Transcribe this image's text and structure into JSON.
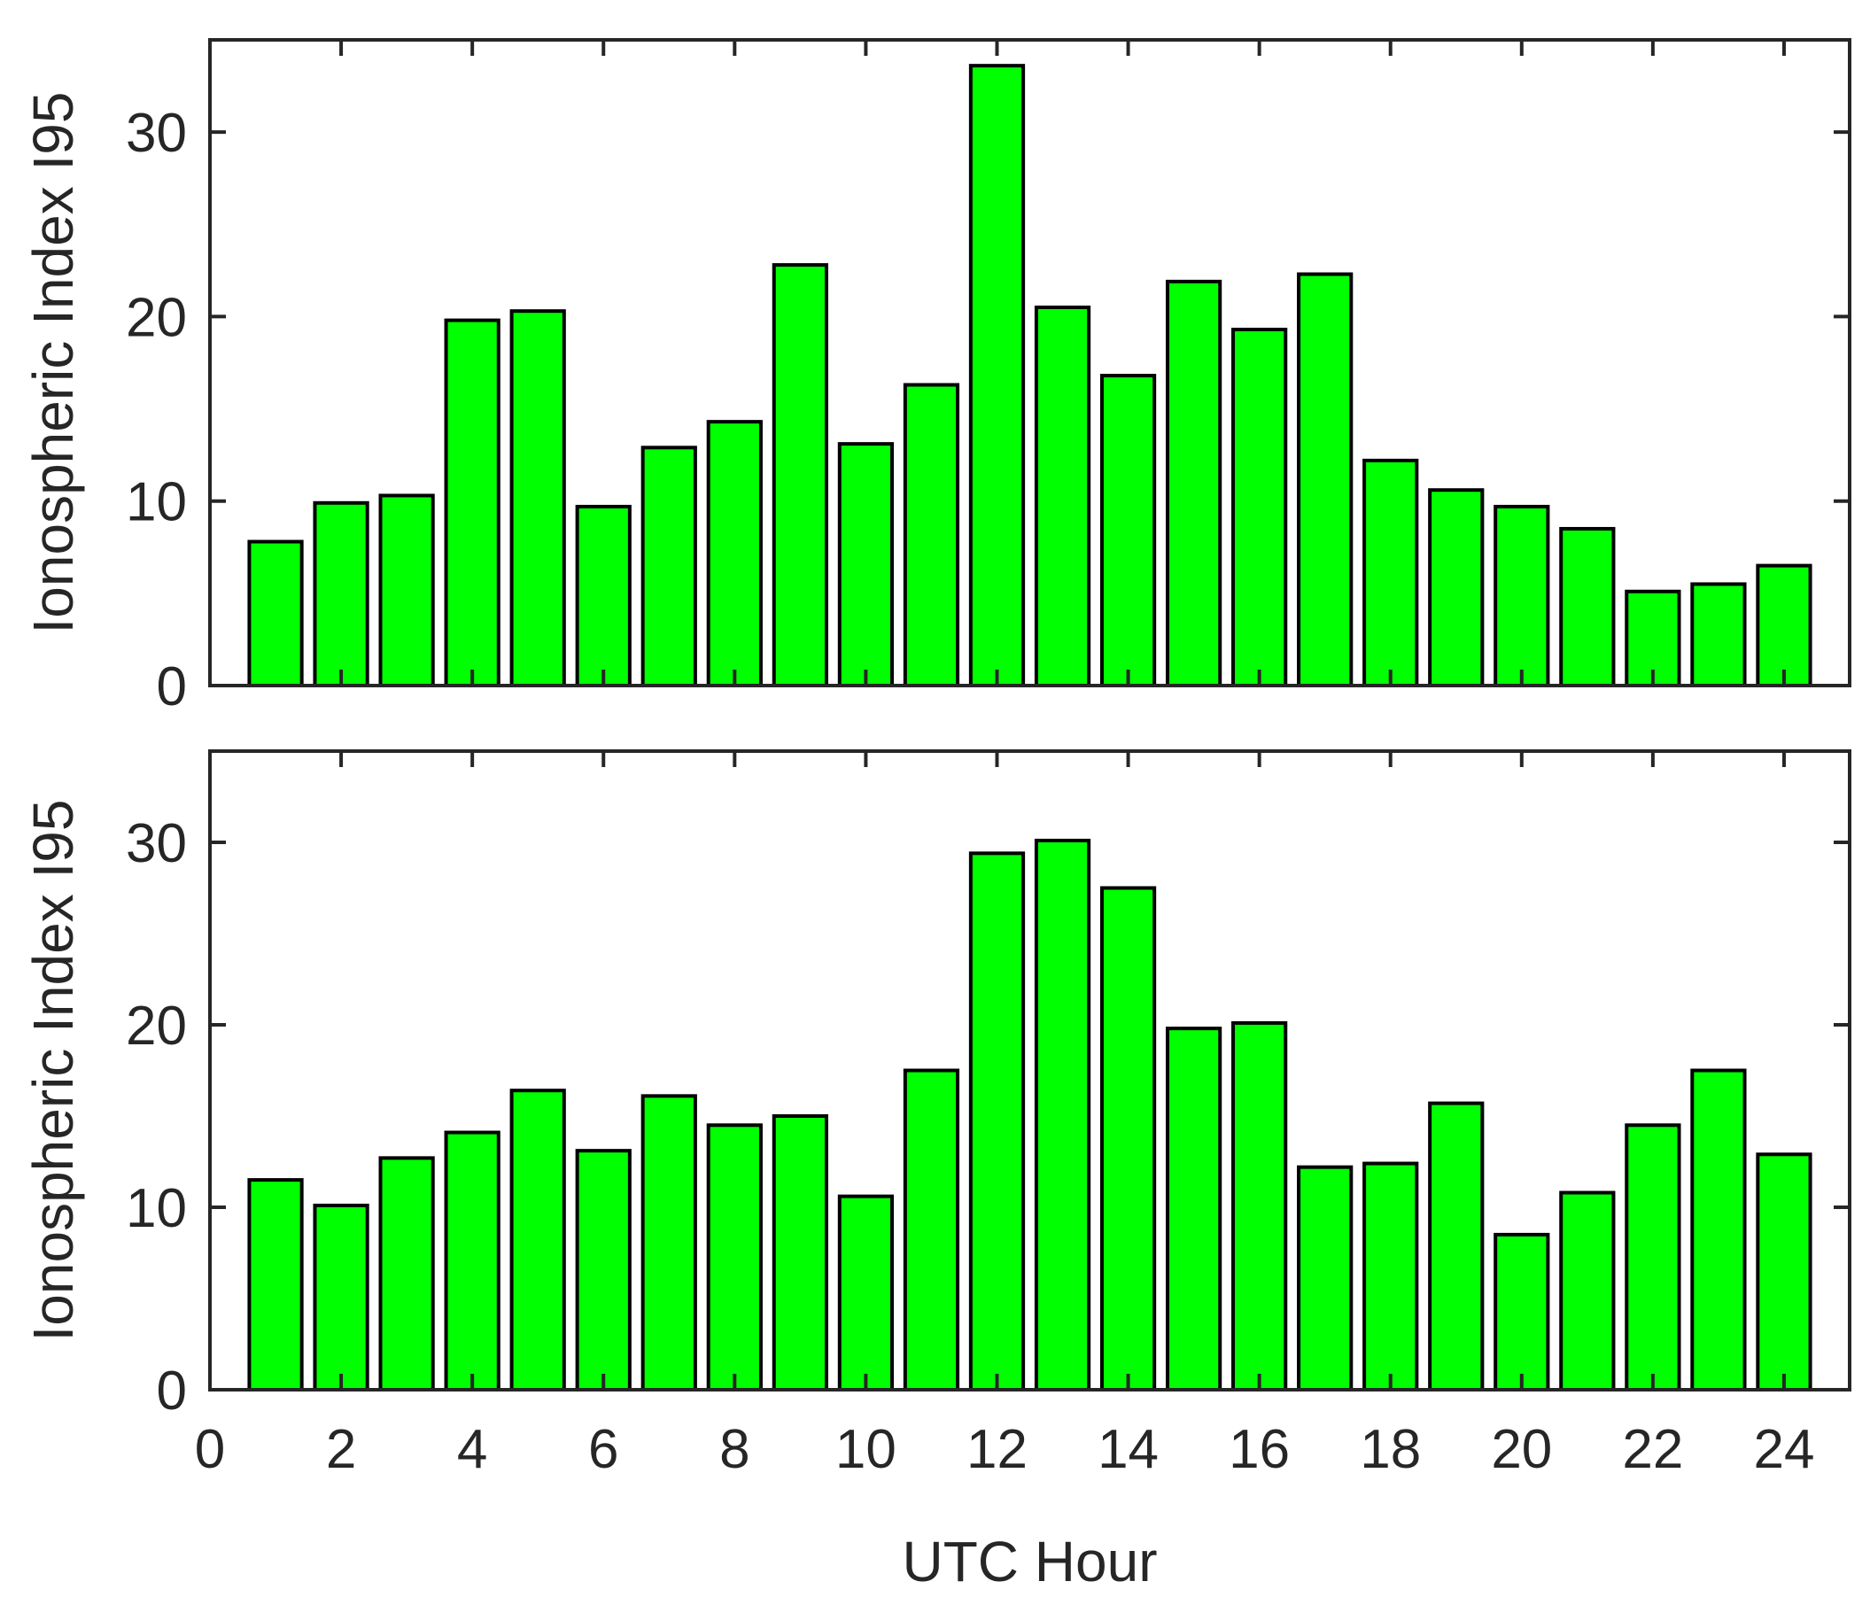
{
  "colors": {
    "bar_fill": "#00ff00",
    "bar_edge": "#000000",
    "axis": "#262626",
    "background": "#ffffff"
  },
  "chart_data": [
    {
      "type": "bar",
      "x": [
        1,
        2,
        3,
        4,
        5,
        6,
        7,
        8,
        9,
        10,
        11,
        12,
        13,
        14,
        15,
        16,
        17,
        18,
        19,
        20,
        21,
        22,
        23,
        24
      ],
      "values": [
        7.8,
        9.9,
        10.3,
        19.8,
        20.3,
        9.7,
        12.9,
        14.3,
        22.8,
        13.1,
        16.3,
        33.6,
        20.5,
        16.8,
        21.9,
        19.3,
        22.3,
        12.2,
        10.6,
        9.7,
        8.5,
        5.1,
        5.5,
        6.5
      ],
      "xlabel": "",
      "ylabel": "Ionospheric Index I95",
      "xlim": [
        0,
        25
      ],
      "ylim": [
        0,
        35
      ],
      "xticks": [],
      "yticks": [
        "0",
        "10",
        "20",
        "30"
      ],
      "grid": false,
      "box": true
    },
    {
      "type": "bar",
      "x": [
        1,
        2,
        3,
        4,
        5,
        6,
        7,
        8,
        9,
        10,
        11,
        12,
        13,
        14,
        15,
        16,
        17,
        18,
        19,
        20,
        21,
        22,
        23,
        24
      ],
      "values": [
        11.5,
        10.1,
        12.7,
        14.1,
        16.4,
        13.1,
        16.1,
        14.5,
        15.0,
        10.6,
        17.5,
        29.4,
        30.1,
        27.5,
        19.8,
        20.1,
        12.2,
        12.4,
        15.7,
        8.5,
        10.8,
        14.5,
        17.5,
        12.9
      ],
      "xlabel": "UTC Hour",
      "ylabel": "Ionospheric Index I95",
      "xlim": [
        0,
        25
      ],
      "ylim": [
        0,
        35
      ],
      "xticks": [
        "0",
        "2",
        "4",
        "6",
        "8",
        "10",
        "12",
        "14",
        "16",
        "18",
        "20",
        "22",
        "24"
      ],
      "yticks": [
        "0",
        "10",
        "20",
        "30"
      ],
      "grid": false,
      "box": true
    }
  ]
}
